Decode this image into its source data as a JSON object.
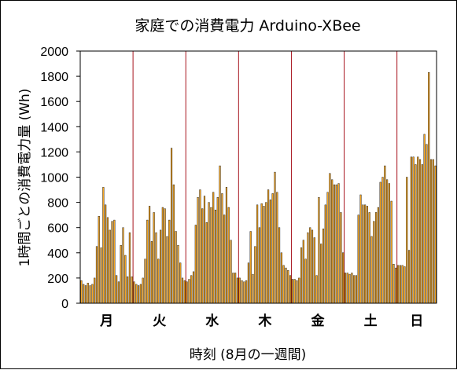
{
  "chart_data": {
    "type": "bar",
    "title": "家庭での消費電力 Arduino-XBee",
    "xlabel": "時刻 (8月の一週間)",
    "ylabel": "1時間ごとの消費電力量 (Wh)",
    "ylim": [
      0,
      2000
    ],
    "yticks": [
      "0",
      "200",
      "400",
      "600",
      "800",
      "1000",
      "1200",
      "1400",
      "1600",
      "1800",
      "2000"
    ],
    "grid": false,
    "day_labels": [
      "月",
      "火",
      "水",
      "木",
      "金",
      "土",
      "日"
    ],
    "colors": {
      "bar": "#f5a623",
      "bar_edge": "#000000",
      "day_divider": "#a8141e"
    },
    "series": [
      {
        "values": [
          180,
          150,
          140,
          160,
          140,
          150,
          200,
          450,
          690,
          440,
          920,
          780,
          680,
          580,
          650,
          660,
          220,
          170,
          460,
          600,
          380,
          210,
          560,
          210,
          170,
          150,
          140,
          150,
          200,
          350,
          660,
          770,
          490,
          720,
          560,
          350,
          580,
          760,
          750,
          530,
          660,
          1230,
          940,
          570,
          460,
          320,
          200,
          180,
          170,
          190,
          220,
          250,
          620,
          840,
          900,
          750,
          850,
          640,
          800,
          760,
          880,
          740,
          840,
          1090,
          870,
          700,
          920,
          760,
          500,
          240,
          240,
          200,
          200,
          180,
          170,
          180,
          320,
          570,
          230,
          450,
          780,
          600,
          790,
          770,
          800,
          900,
          820,
          870,
          1040,
          880,
          600,
          400,
          300,
          280,
          260,
          220,
          190,
          190,
          180,
          200,
          440,
          500,
          350,
          560,
          600,
          580,
          520,
          220,
          840,
          470,
          590,
          780,
          880,
          1030,
          980,
          940,
          940,
          950,
          720,
          400,
          240,
          240,
          230,
          240,
          220,
          220,
          700,
          860,
          780,
          780,
          770,
          720,
          530,
          650,
          720,
          760,
          960,
          1000,
          1090,
          980,
          950,
          810,
          310,
          280,
          300,
          300,
          300,
          290,
          1000,
          420,
          1160,
          1160,
          1100,
          1160,
          1140,
          1100,
          1340,
          1260,
          1830,
          1140,
          1140,
          1090
        ]
      }
    ]
  }
}
